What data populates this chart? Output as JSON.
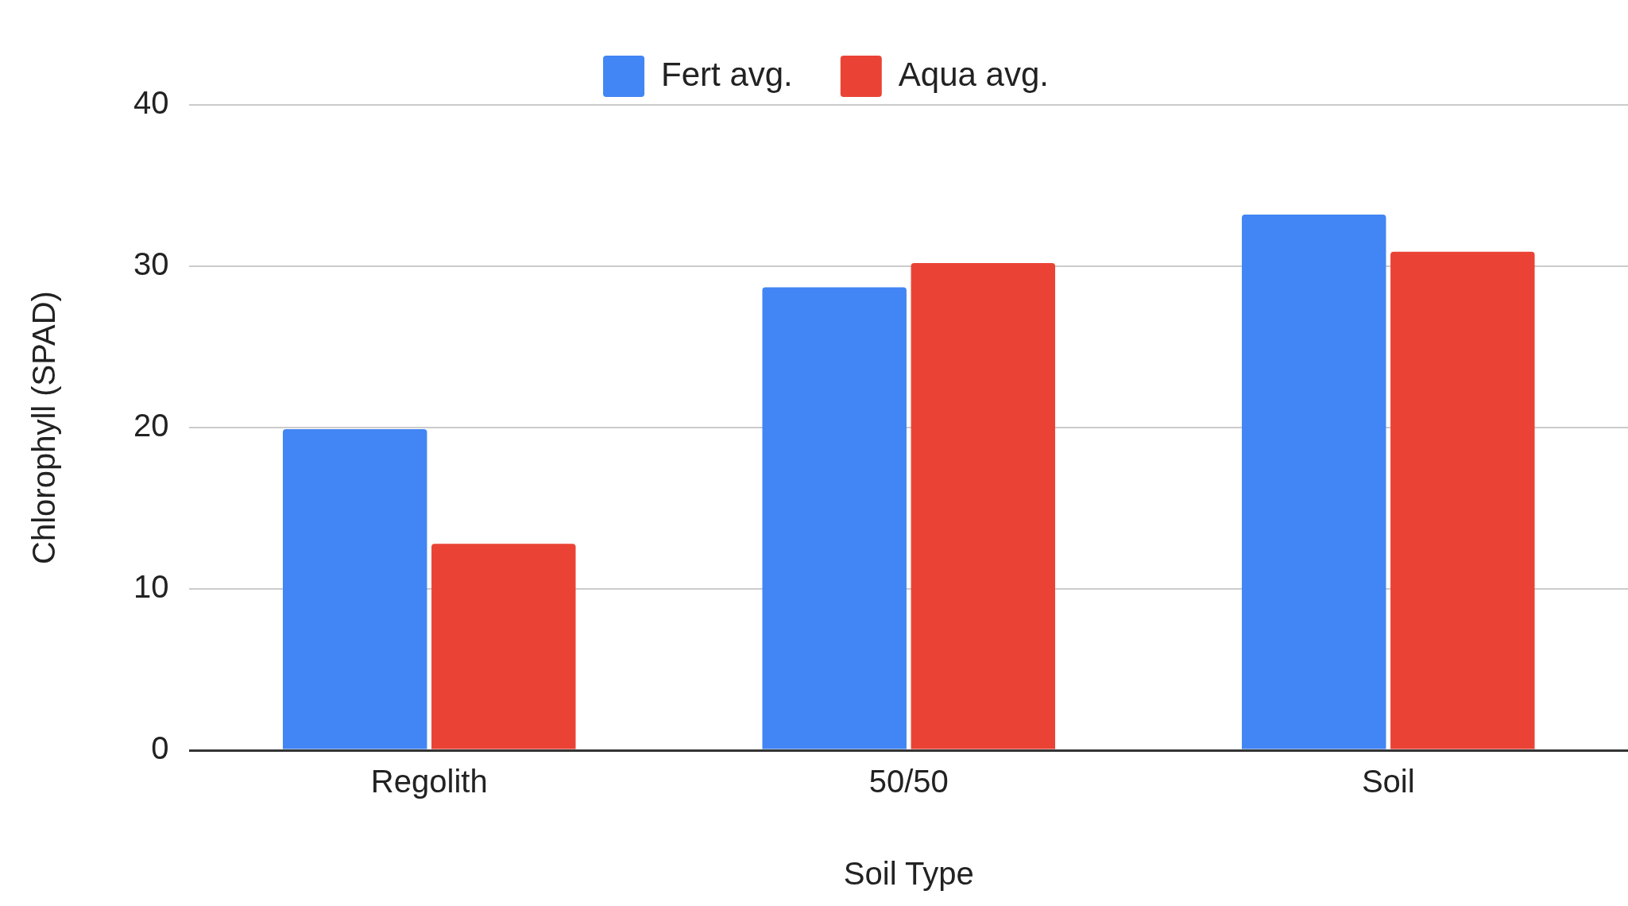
{
  "chart_data": {
    "type": "bar",
    "xlabel": "Soil Type",
    "ylabel": "Chlorophyll (SPAD)",
    "categories": [
      "Regolith",
      "50/50",
      "Soil"
    ],
    "series": [
      {
        "name": "Fert avg.",
        "color": "#4285f4",
        "values": [
          19.9,
          28.7,
          33.2
        ]
      },
      {
        "name": "Aqua avg.",
        "color": "#ea4335",
        "values": [
          12.8,
          30.2,
          30.9
        ]
      }
    ],
    "ylim": [
      0,
      40
    ],
    "yticks": [
      0,
      10,
      20,
      30,
      40
    ],
    "grid": "y",
    "legend": "top"
  }
}
